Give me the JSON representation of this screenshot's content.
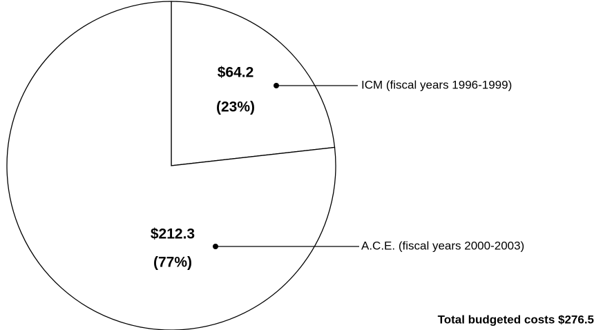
{
  "chart_data": {
    "type": "pie",
    "categories": [
      "ICM (fiscal years 1996-1999)",
      "A.C.E. (fiscal years 2000-2003)"
    ],
    "values": [
      64.2,
      212.3
    ],
    "value_labels": [
      "$64.2",
      "$212.3"
    ],
    "share_labels": [
      "(23%)",
      "(77%)"
    ],
    "colors": [
      "#ffffff",
      "#ffffff"
    ],
    "total_label": "Total budgeted costs $276.5"
  }
}
